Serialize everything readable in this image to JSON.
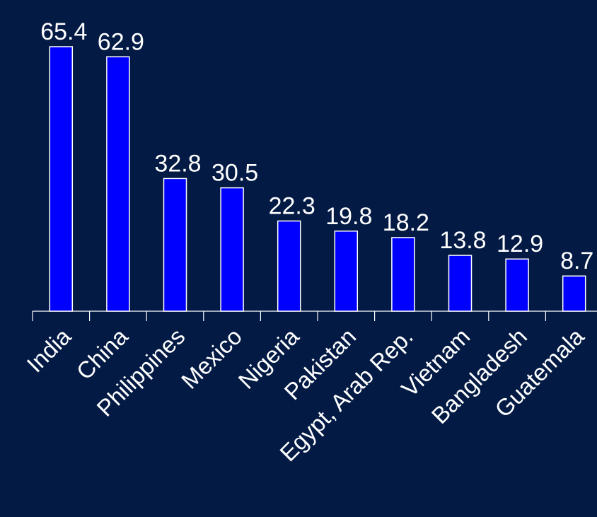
{
  "chart_data": {
    "type": "bar",
    "title": "",
    "xlabel": "",
    "ylabel": "",
    "categories": [
      "India",
      "China",
      "Philippines",
      "Mexico",
      "Nigeria",
      "Pakistan",
      "Egypt, Arab Rep.",
      "Vietnam",
      "Bangladesh",
      "Guatemala"
    ],
    "values": [
      65.4,
      62.9,
      32.8,
      30.5,
      22.3,
      19.8,
      18.2,
      13.8,
      12.9,
      8.7
    ],
    "value_labels": [
      "65.4",
      "62.9",
      "32.8",
      "30.5",
      "22.3",
      "19.8",
      "18.2",
      "13.8",
      "12.9",
      "8.7"
    ],
    "ylim": [
      0,
      65.4
    ],
    "grid": false,
    "legend": "none",
    "colors": {
      "background": "#021a44",
      "bar": "#0000ff",
      "bar_border": "#ffffff",
      "text": "#ffffff"
    }
  }
}
